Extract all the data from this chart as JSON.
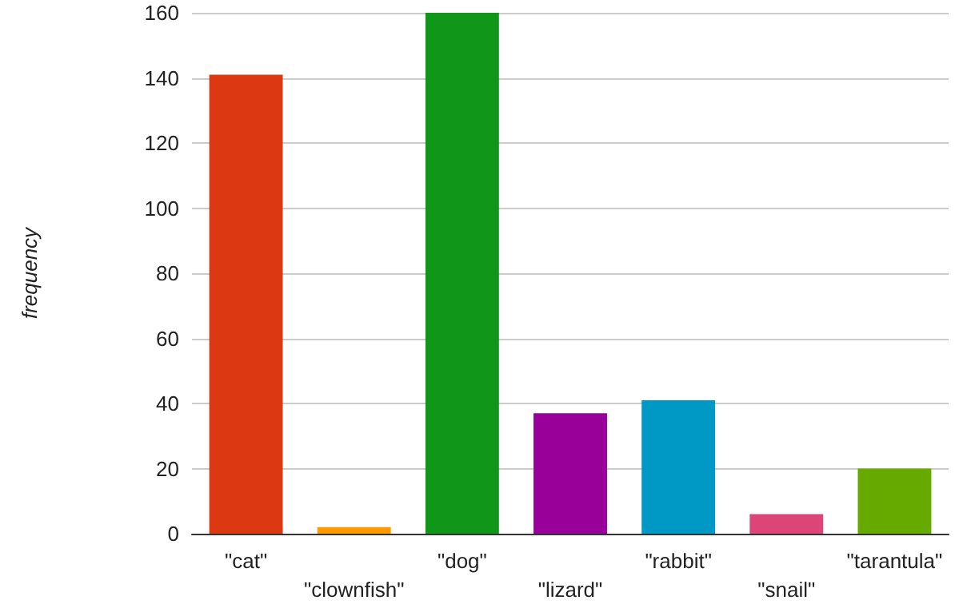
{
  "chart_data": {
    "type": "bar",
    "ylabel": "frequency",
    "categories": [
      "\"cat\"",
      "\"clownfish\"",
      "\"dog\"",
      "\"lizard\"",
      "\"rabbit\"",
      "\"snail\"",
      "\"tarantula\""
    ],
    "values": [
      141,
      2,
      160,
      37,
      41,
      6,
      20
    ],
    "colors": [
      "#dc3912",
      "#ff9900",
      "#109618",
      "#990099",
      "#0099c6",
      "#dd4477",
      "#66aa00"
    ],
    "ylim": [
      0,
      160
    ],
    "yticks": [
      0,
      20,
      40,
      60,
      80,
      100,
      120,
      140,
      160
    ],
    "grid": "y"
  }
}
